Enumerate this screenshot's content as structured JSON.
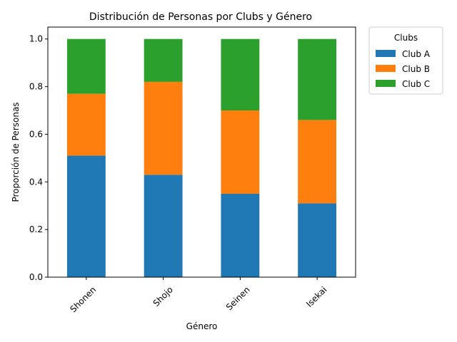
{
  "chart_data": {
    "type": "bar",
    "stacked": true,
    "title": "Distribución de Personas por Clubs y Género",
    "xlabel": "Género",
    "ylabel": "Proporción de Personas",
    "categories": [
      "Shonen",
      "Shojo",
      "Seinen",
      "Isekai"
    ],
    "series": [
      {
        "name": "Club A",
        "values": [
          0.51,
          0.43,
          0.35,
          0.31
        ],
        "color": "#1f77b4"
      },
      {
        "name": "Club B",
        "values": [
          0.26,
          0.39,
          0.35,
          0.35
        ],
        "color": "#ff7f0e"
      },
      {
        "name": "Club C",
        "values": [
          0.23,
          0.18,
          0.3,
          0.34
        ],
        "color": "#2ca02c"
      }
    ],
    "ylim": [
      0,
      1.05
    ],
    "yticks": [
      "0.0",
      "0.2",
      "0.4",
      "0.6",
      "0.8",
      "1.0"
    ],
    "grid": false,
    "legend": {
      "title": "Clubs",
      "placement": "outside-top-right"
    }
  }
}
